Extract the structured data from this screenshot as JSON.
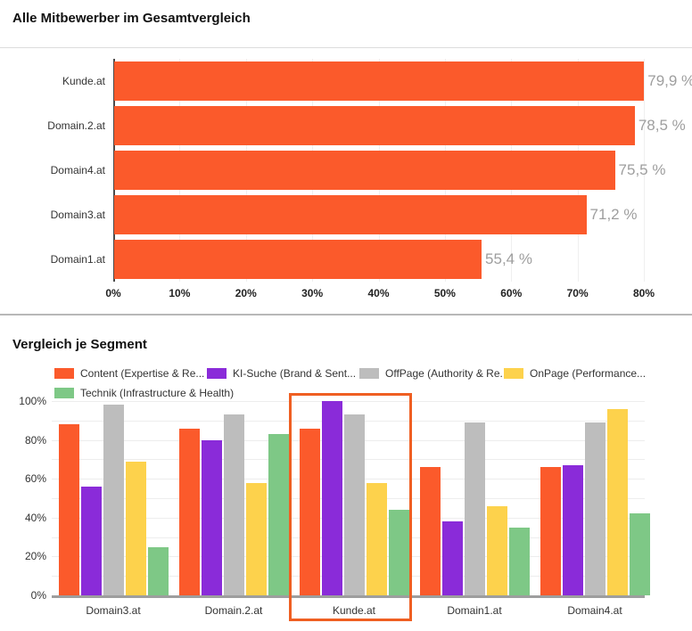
{
  "page": {
    "section1_title": "Alle Mitbewerber im Gesamtvergleich",
    "section2_title": "Vergleich je Segment"
  },
  "colors": {
    "bar_orange": "#fb5a2b",
    "purple": "#8a2bd9",
    "gray": "#bdbdbd",
    "yellow": "#fdd24c",
    "green": "#7ec886",
    "highlight_box": "#ef5f22",
    "value_label_gray": "#9e9e9e"
  },
  "chart_data": [
    {
      "type": "bar",
      "orientation": "horizontal",
      "title": "Alle Mitbewerber im Gesamtvergleich",
      "categories": [
        "Kunde.at",
        "Domain.2.at",
        "Domain4.at",
        "Domain3.at",
        "Domain1.at"
      ],
      "values": [
        79.9,
        78.5,
        75.5,
        71.2,
        55.4
      ],
      "value_labels": [
        "79,9 %",
        "78,5 %",
        "75,5 %",
        "71,2 %",
        "55,4 %"
      ],
      "x_ticks": [
        "0%",
        "10%",
        "20%",
        "30%",
        "40%",
        "50%",
        "60%",
        "70%",
        "80%"
      ],
      "xlim": [
        0,
        80
      ],
      "bar_color": "#fb5a2b",
      "grid": true,
      "legend_position": "none"
    },
    {
      "type": "bar",
      "orientation": "vertical",
      "title": "Vergleich je Segment",
      "categories": [
        "Domain3.at",
        "Domain.2.at",
        "Kunde.at",
        "Domain1.at",
        "Domain4.at"
      ],
      "series": [
        {
          "name": "Content (Expertise & Re...",
          "color": "#fb5a2b",
          "values": [
            88,
            86,
            86,
            66,
            66
          ]
        },
        {
          "name": "KI-Suche (Brand & Sent...",
          "color": "#8a2bd9",
          "values": [
            56,
            80,
            100,
            38,
            67
          ]
        },
        {
          "name": "OffPage (Authority & Re...",
          "color": "#bdbdbd",
          "values": [
            98,
            93,
            93,
            89,
            89
          ]
        },
        {
          "name": "OnPage (Performance...",
          "color": "#fdd24c",
          "values": [
            69,
            58,
            58,
            46,
            96
          ]
        },
        {
          "name": "Technik (Infrastructure & Health)",
          "color": "#7ec886",
          "values": [
            25,
            83,
            44,
            35,
            42
          ]
        }
      ],
      "y_ticks": [
        "0%",
        "20%",
        "40%",
        "60%",
        "80%",
        "100%"
      ],
      "ylim": [
        0,
        100
      ],
      "grid": true,
      "legend_position": "top",
      "highlighted_category": "Kunde.at"
    }
  ]
}
